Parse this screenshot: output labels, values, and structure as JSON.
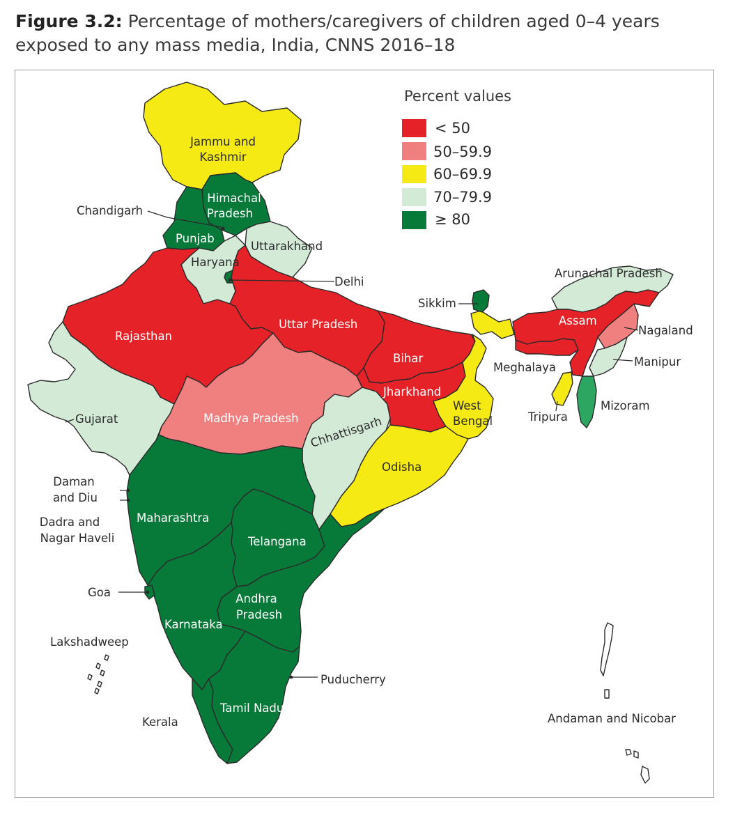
{
  "title": {
    "label": "Figure 3.2:",
    "text": "Percentage of mothers/caregivers of children aged 0–4 years exposed to any mass media, India, CNNS 2016–18"
  },
  "legend": {
    "title": "Percent values",
    "items": [
      {
        "label": "< 50",
        "color": "#e52228"
      },
      {
        "label": "50–59.9",
        "color": "#f08080"
      },
      {
        "label": "60–69.9",
        "color": "#f5ea14"
      },
      {
        "label": "70–79.9",
        "color": "#d3ead6"
      },
      {
        "label": "≥ 80",
        "color": "#077a3a"
      }
    ]
  },
  "chart_data": {
    "type": "choropleth",
    "title": "Percentage of mothers/caregivers of children aged 0–4 years exposed to any mass media, India, CNNS 2016–18",
    "legend_title": "Percent values",
    "bins": [
      "< 50",
      "50–59.9",
      "60–69.9",
      "70–79.9",
      "≥ 80"
    ],
    "regions": [
      {
        "name": "Jammu and Kashmir",
        "bin": "60–69.9"
      },
      {
        "name": "Himachal Pradesh",
        "bin": "≥ 80"
      },
      {
        "name": "Punjab",
        "bin": "≥ 80"
      },
      {
        "name": "Chandigarh",
        "bin": "≥ 80"
      },
      {
        "name": "Uttarakhand",
        "bin": "70–79.9"
      },
      {
        "name": "Haryana",
        "bin": "70–79.9"
      },
      {
        "name": "Delhi",
        "bin": "≥ 80"
      },
      {
        "name": "Rajasthan",
        "bin": "< 50"
      },
      {
        "name": "Uttar Pradesh",
        "bin": "< 50"
      },
      {
        "name": "Bihar",
        "bin": "< 50"
      },
      {
        "name": "Jharkhand",
        "bin": "< 50"
      },
      {
        "name": "Sikkim",
        "bin": "≥ 80"
      },
      {
        "name": "Arunachal Pradesh",
        "bin": "70–79.9"
      },
      {
        "name": "Assam",
        "bin": "< 50"
      },
      {
        "name": "Nagaland",
        "bin": "50–59.9"
      },
      {
        "name": "Meghalaya",
        "bin": "< 50"
      },
      {
        "name": "Manipur",
        "bin": "70–79.9"
      },
      {
        "name": "Mizoram",
        "bin": "≥ 80"
      },
      {
        "name": "Tripura",
        "bin": "60–69.9"
      },
      {
        "name": "West Bengal",
        "bin": "60–69.9"
      },
      {
        "name": "Gujarat",
        "bin": "70–79.9"
      },
      {
        "name": "Madhya Pradesh",
        "bin": "50–59.9"
      },
      {
        "name": "Chhattisgarh",
        "bin": "70–79.9"
      },
      {
        "name": "Odisha",
        "bin": "60–69.9"
      },
      {
        "name": "Maharashtra",
        "bin": "≥ 80"
      },
      {
        "name": "Telangana",
        "bin": "≥ 80"
      },
      {
        "name": "Andhra Pradesh",
        "bin": "≥ 80"
      },
      {
        "name": "Karnataka",
        "bin": "≥ 80"
      },
      {
        "name": "Goa",
        "bin": "≥ 80"
      },
      {
        "name": "Kerala",
        "bin": "≥ 80"
      },
      {
        "name": "Tamil Nadu",
        "bin": "≥ 80"
      },
      {
        "name": "Puducherry",
        "bin": "≥ 80"
      },
      {
        "name": "Daman and Diu",
        "bin": "≥ 80"
      },
      {
        "name": "Dadra and Nagar Haveli",
        "bin": "≥ 80"
      },
      {
        "name": "Lakshadweep",
        "bin": ""
      },
      {
        "name": "Andaman and Nicobar",
        "bin": ""
      }
    ]
  },
  "labels": {
    "jk1": "Jammu and",
    "jk2": "Kashmir",
    "hp1": "Himachal",
    "hp2": "Pradesh",
    "punjab": "Punjab",
    "chandigarh": "Chandigarh",
    "uttarakhand": "Uttarakhand",
    "haryana": "Haryana",
    "delhi": "Delhi",
    "rajasthan": "Rajasthan",
    "up": "Uttar Pradesh",
    "bihar": "Bihar",
    "jharkhand": "Jharkhand",
    "sikkim": "Sikkim",
    "arunachal": "Arunachal Pradesh",
    "assam": "Assam",
    "nagaland": "Nagaland",
    "meghalaya": "Meghalaya",
    "manipur": "Manipur",
    "mizoram": "Mizoram",
    "tripura": "Tripura",
    "wb1": "West",
    "wb2": "Bengal",
    "gujarat": "Gujarat",
    "mp": "Madhya Pradesh",
    "chhattisgarh": "Chhattisgarh",
    "odisha": "Odisha",
    "daman1": "Daman",
    "daman2": "and Diu",
    "dadra1": "Dadra and",
    "dadra2": "Nagar Haveli",
    "maharashtra": "Maharashtra",
    "telangana": "Telangana",
    "ap1": "Andhra",
    "ap2": "Pradesh",
    "goa": "Goa",
    "karnataka": "Karnataka",
    "lakshadweep": "Lakshadweep",
    "puducherry": "Puducherry",
    "kerala": "Kerala",
    "tn": "Tamil Nadu",
    "andaman": "Andaman and Nicobar"
  }
}
